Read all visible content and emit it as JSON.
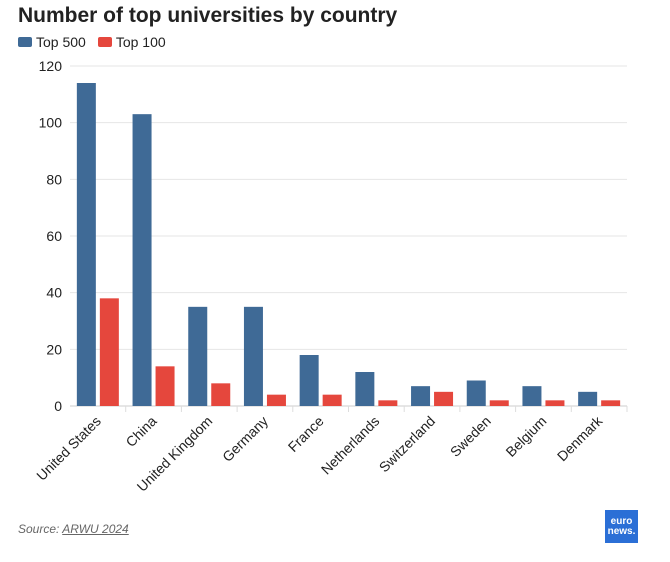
{
  "title": "Number of top universities by country",
  "source_label": "Source:",
  "source_link": "ARWU 2024",
  "logo": {
    "line1": "euro",
    "line2": "news."
  },
  "chart_data": {
    "type": "bar",
    "title": "Number of top universities by country",
    "categories": [
      "United States",
      "China",
      "United Kingdom",
      "Germany",
      "France",
      "Netherlands",
      "Switzerland",
      "Sweden",
      "Belgium",
      "Denmark"
    ],
    "series": [
      {
        "name": "Top 500",
        "color": "#3f6a96",
        "values": [
          114,
          103,
          35,
          35,
          18,
          12,
          7,
          9,
          7,
          5
        ]
      },
      {
        "name": "Top 100",
        "color": "#e5473d",
        "values": [
          38,
          14,
          8,
          4,
          4,
          2,
          5,
          2,
          2,
          2
        ]
      }
    ],
    "ylim": [
      0,
      120
    ],
    "yticks": [
      0,
      20,
      40,
      60,
      80,
      100,
      120
    ],
    "grid": true,
    "legend": "top-left",
    "xlabel": "",
    "ylabel": ""
  }
}
